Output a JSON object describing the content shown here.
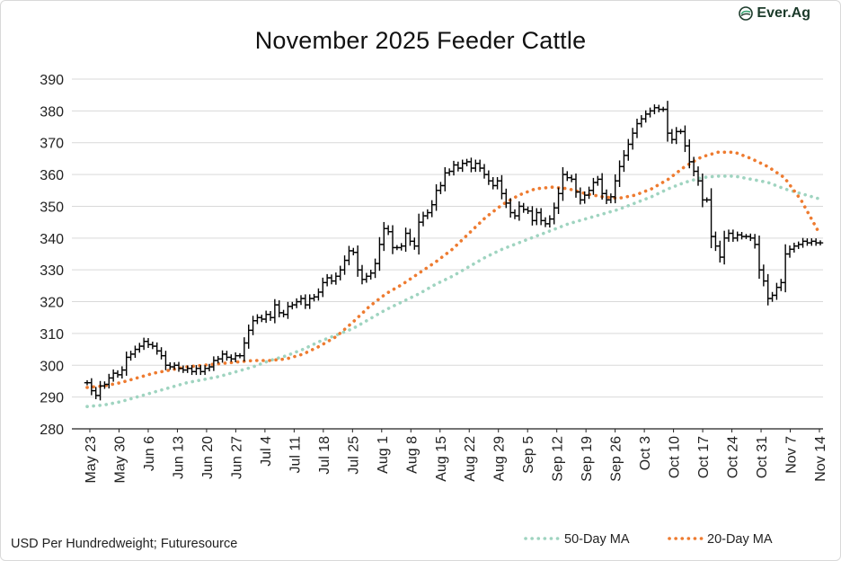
{
  "brand": {
    "logo_text": "Ever.Ag",
    "colors": {
      "primary": "#1b3a2a",
      "accent": "#3ba776"
    }
  },
  "source_note": "USD Per Hundredweight; Futuresource",
  "chart_data": {
    "type": "bar",
    "subtype": "ohlc",
    "title": "November 2025 Feeder Cattle",
    "xlabel": "",
    "ylabel": "USD Per Hundredweight",
    "ylim": [
      280,
      390
    ],
    "yticks": [
      280,
      290,
      300,
      310,
      320,
      330,
      340,
      350,
      360,
      370,
      380,
      390
    ],
    "grid": true,
    "legend_position": "bottom-right",
    "xtick_labels": [
      "May 23",
      "May 30",
      "Jun 6",
      "Jun 13",
      "Jun 20",
      "Jun 27",
      "Jul 4",
      "Jul 11",
      "Jul 18",
      "Jul 25",
      "Aug 1",
      "Aug 8",
      "Aug 15",
      "Aug 22",
      "Aug 29",
      "Sep 5",
      "Sep 12",
      "Sep 19",
      "Sep 26",
      "Oct 3",
      "Oct 10",
      "Oct 17",
      "Oct 24",
      "Oct 31",
      "Nov 7",
      "Nov 14"
    ],
    "colors": {
      "price": "#000000",
      "ma50": "#9fd4c0",
      "ma20": "#ee7b30",
      "grid": "#d9d9d9",
      "axis": "#222222"
    },
    "series": [
      {
        "name": "Price",
        "style": "ohlc",
        "close": [
          294.5,
          292.0,
          290.5,
          293.5,
          294.0,
          296.0,
          297.5,
          297.0,
          298.5,
          302.5,
          303.5,
          305.0,
          306.0,
          307.5,
          306.5,
          306.0,
          304.5,
          303.0,
          300.0,
          299.5,
          300.0,
          299.0,
          298.5,
          299.0,
          298.0,
          299.0,
          298.0,
          299.0,
          299.5,
          301.5,
          302.0,
          303.5,
          302.5,
          302.0,
          303.0,
          303.0,
          307.0,
          311.0,
          314.0,
          315.0,
          314.5,
          316.0,
          315.0,
          319.0,
          316.5,
          316.0,
          318.5,
          319.0,
          320.0,
          321.0,
          319.0,
          321.0,
          321.5,
          323.0,
          326.0,
          327.5,
          326.5,
          328.0,
          330.0,
          333.0,
          336.0,
          335.5,
          330.0,
          327.0,
          328.0,
          329.0,
          332.0,
          338.0,
          343.0,
          342.0,
          337.0,
          337.0,
          337.5,
          341.5,
          339.0,
          337.5,
          345.0,
          347.0,
          348.0,
          350.5,
          355.0,
          356.5,
          360.5,
          361.0,
          363.0,
          362.0,
          363.5,
          364.0,
          362.0,
          363.5,
          362.0,
          360.0,
          358.0,
          356.5,
          358.0,
          354.0,
          351.0,
          348.0,
          347.0,
          350.0,
          349.0,
          348.5,
          345.5,
          348.0,
          345.5,
          344.5,
          346.0,
          349.5,
          354.0,
          360.0,
          359.0,
          358.5,
          354.5,
          352.0,
          353.5,
          355.0,
          357.5,
          358.5,
          354.0,
          352.0,
          353.0,
          358.0,
          362.5,
          366.0,
          369.5,
          373.0,
          376.0,
          377.5,
          379.0,
          380.0,
          381.0,
          380.5,
          380.5,
          373.0,
          371.0,
          373.5,
          373.5,
          369.0,
          364.0,
          361.0,
          358.0,
          352.0,
          352.0,
          340.5,
          337.5,
          334.0,
          340.0,
          341.5,
          340.0,
          341.0,
          340.5,
          340.5,
          340.0,
          338.0,
          330.0,
          326.5,
          321.0,
          322.0,
          324.5,
          326.0,
          335.0,
          336.5,
          337.5,
          338.0,
          339.0,
          338.5,
          339.0,
          338.5,
          338.5
        ]
      },
      {
        "name": "50-Day MA",
        "style": "dotted",
        "values": [
          287.0,
          287.5,
          288.5,
          290.0,
          291.5,
          293.0,
          294.5,
          295.5,
          296.5,
          298.0,
          299.5,
          301.5,
          303.0,
          305.0,
          307.5,
          309.5,
          311.5,
          314.5,
          317.5,
          320.0,
          322.5,
          325.5,
          328.0,
          331.0,
          334.0,
          336.5,
          338.5,
          340.5,
          342.5,
          344.5,
          346.0,
          347.5,
          349.0,
          351.0,
          353.0,
          355.5,
          357.5,
          359.0,
          359.5,
          359.5,
          358.5,
          357.5,
          355.5,
          354.0,
          352.5
        ]
      },
      {
        "name": "20-Day MA",
        "style": "dotted",
        "values": [
          293.0,
          293.5,
          294.5,
          296.0,
          297.5,
          298.5,
          299.5,
          300.0,
          300.5,
          301.0,
          301.5,
          301.5,
          302.0,
          303.5,
          306.0,
          309.0,
          313.5,
          318.5,
          322.5,
          325.5,
          329.0,
          332.5,
          336.5,
          341.5,
          346.5,
          350.5,
          353.5,
          355.5,
          356.0,
          355.5,
          354.0,
          353.0,
          352.5,
          353.5,
          355.5,
          358.5,
          362.5,
          365.5,
          367.0,
          367.0,
          365.0,
          362.5,
          359.0,
          352.0,
          342.5
        ]
      }
    ]
  },
  "legend": {
    "items": [
      {
        "label": "50-Day MA"
      },
      {
        "label": "20-Day MA"
      }
    ]
  }
}
